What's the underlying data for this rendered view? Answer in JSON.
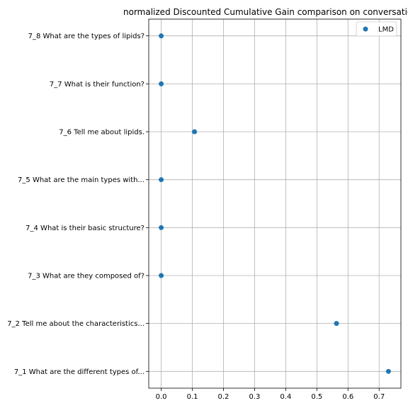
{
  "chart_data": {
    "type": "scatter",
    "title": "normalized Discounted Cumulative Gain comparison on conversation",
    "xlabel": "",
    "ylabel": "",
    "xlim": [
      -0.04,
      0.77
    ],
    "xticks": [
      0.0,
      0.1,
      0.2,
      0.3,
      0.4,
      0.5,
      0.6,
      0.7
    ],
    "xtick_labels": [
      "0.0",
      "0.1",
      "0.2",
      "0.3",
      "0.4",
      "0.5",
      "0.6",
      "0.7"
    ],
    "categories": [
      "7_1 What are the different types of...",
      "7_2 Tell me about the characteristics...",
      "7_3 What are they composed of?",
      "7_4 What is their basic structure?",
      "7_5 What are the main types with...",
      "7_6 Tell me about lipids.",
      "7_7 What is their function?",
      "7_8 What are the types of lipids?"
    ],
    "series": [
      {
        "name": "LMD",
        "color": "#1f77b4",
        "values": [
          0.73,
          0.563,
          0.0,
          0.0,
          0.0,
          0.107,
          0.0,
          0.0
        ]
      }
    ],
    "grid": true,
    "legend_position": "top-right"
  }
}
